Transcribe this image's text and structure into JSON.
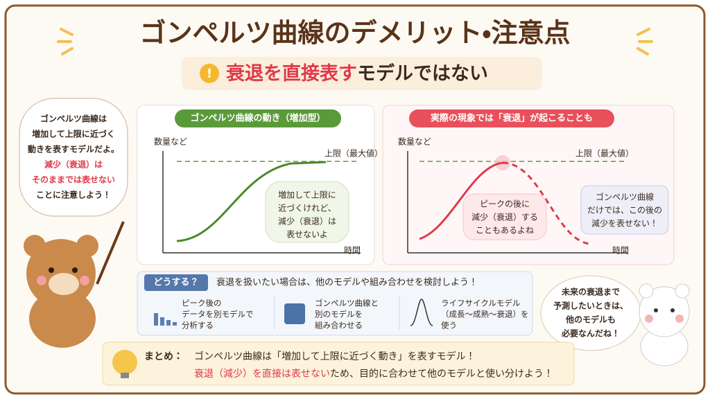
{
  "title": "ゴンペルツ曲線のデメリット・注意点",
  "subtitle": {
    "highlight": "衰退を直接表す",
    "rest": "モデルではない"
  },
  "left_bubble": [
    "ゴンペルツ曲線は",
    "増加して上限に近づく",
    "動きを表すモデルだよ。",
    "減少（衰退）は",
    "そのままでは表せない",
    "ことに注意しよう！"
  ],
  "panel1": {
    "tag": "ゴンペルツ曲線の動き（増加型）",
    "y_label": "数量など",
    "x_label": "時間",
    "upper": "上限（最大値）",
    "note": [
      "増加して上限に",
      "近づくけれど、",
      "減少（衰退）は",
      "表せないよ"
    ]
  },
  "panel2": {
    "tag": "実際の現象では「衰退」が起こることも",
    "y_label": "数量など",
    "x_label": "時間",
    "upper": "上限（最大値）",
    "note1": [
      "ピークの後に",
      "減少（衰退）する",
      "こともあるよね"
    ],
    "note2": [
      "ゴンペルツ曲線",
      "だけでは、この後の",
      "減少を表せない！"
    ]
  },
  "howto": {
    "tag": "どうする？",
    "text": "衰退を扱いたい場合は、他のモデルや組み合わせを検討しよう！",
    "items": [
      [
        "ピーク後の",
        "データを別モデルで",
        "分析する"
      ],
      [
        "ゴンペルツ曲線と",
        "別のモデルを",
        "組み合わせる"
      ],
      [
        "ライフサイクルモデル",
        "（成長〜成熟〜衰退）を",
        "使う"
      ]
    ]
  },
  "right_bubble": [
    "未来の衰退まで",
    "予測したいときは、",
    "他のモデルも",
    "必要なんだね！"
  ],
  "summary": {
    "label": "まとめ：",
    "line1": "ゴンペルツ曲線は「増加して上限に近づく動き」を表すモデル！",
    "line2_highlight": "衰退（減少）を直接は表せない",
    "line2_rest": "ため、目的に合わせて他のモデルと使い分けよう！"
  }
}
